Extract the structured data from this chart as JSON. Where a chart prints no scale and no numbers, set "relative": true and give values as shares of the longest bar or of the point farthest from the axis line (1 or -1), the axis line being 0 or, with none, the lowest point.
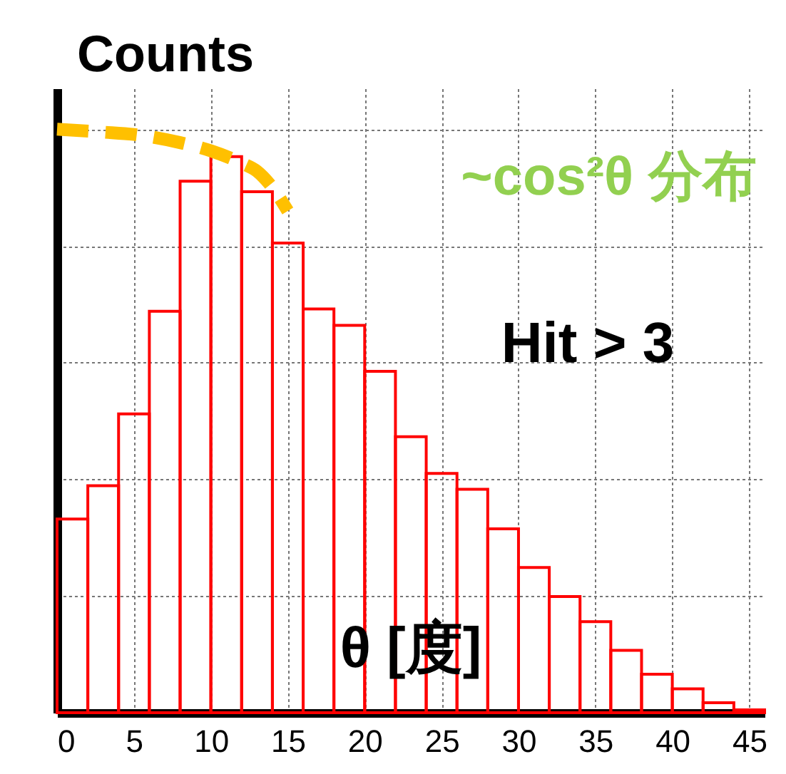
{
  "chart_data": {
    "type": "histogram",
    "relative": true,
    "xlabel": "θ [度]",
    "ylabel": "Counts",
    "annotations": [
      "Hit > 3",
      "~cos²θ 分布"
    ],
    "bins": [
      0,
      2,
      4,
      6,
      8,
      10,
      12,
      14,
      16,
      18,
      20,
      22,
      24,
      26,
      28,
      30,
      32,
      34,
      36,
      38,
      40,
      42,
      44,
      46
    ],
    "values": [
      0.332,
      0.389,
      0.512,
      0.688,
      0.911,
      0.953,
      0.893,
      0.805,
      0.692,
      0.664,
      0.585,
      0.473,
      0.41,
      0.383,
      0.315,
      0.249,
      0.199,
      0.156,
      0.107,
      0.066,
      0.041,
      0.017,
      0.005
    ],
    "color": "#ff0000",
    "series": [
      {
        "type": "line",
        "color": "#ffc000",
        "line_style": "dashed",
        "x": [
          0,
          3,
          5,
          8,
          10,
          12,
          13,
          14,
          15
        ],
        "values": [
          1,
          0.995,
          0.991,
          0.977,
          0.963,
          0.942,
          0.928,
          0.9,
          0.86
        ]
      }
    ],
    "xlim": [
      0,
      46
    ],
    "xticks": [
      0,
      5,
      10,
      15,
      20,
      25,
      30,
      35,
      40,
      45
    ],
    "grid": true
  }
}
